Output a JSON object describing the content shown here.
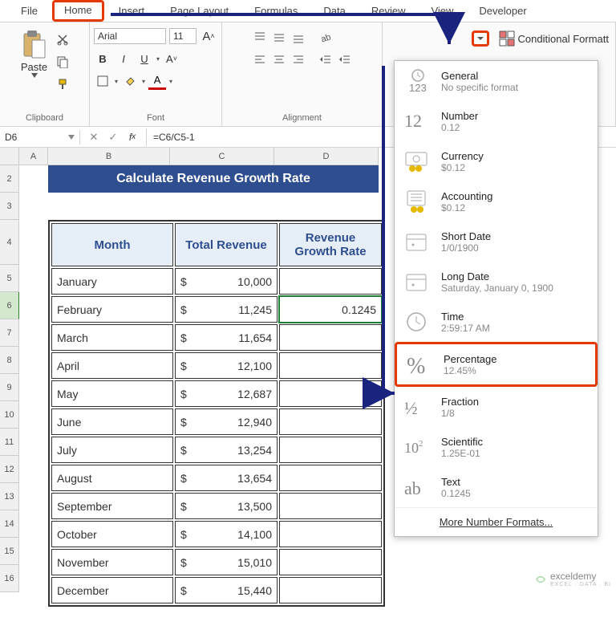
{
  "tabs": {
    "file": "File",
    "home": "Home",
    "insert": "Insert",
    "page_layout": "Page Layout",
    "formulas": "Formulas",
    "data": "Data",
    "review": "Review",
    "view": "View",
    "developer": "Developer"
  },
  "ribbon": {
    "clipboard": {
      "label": "Clipboard",
      "paste": "Paste"
    },
    "font": {
      "label": "Font",
      "name": "Arial",
      "size": "11",
      "bold": "B",
      "italic": "I",
      "underline": "U"
    },
    "alignment": {
      "label": "Alignment"
    },
    "number": {
      "cond_fmt": "Conditional Formatt"
    }
  },
  "formula_bar": {
    "namebox": "D6",
    "formula": "=C6/C5-1"
  },
  "columns": {
    "A": "A",
    "B": "B",
    "C": "C",
    "D": "D"
  },
  "rownums": [
    "2",
    "3",
    "4",
    "5",
    "6",
    "7",
    "8",
    "9",
    "10",
    "11",
    "12",
    "13",
    "14",
    "15",
    "16"
  ],
  "sheet": {
    "title": "Calculate Revenue Growth Rate",
    "headers": {
      "month": "Month",
      "revenue": "Total Revenue",
      "growth": "Revenue Growth Rate"
    },
    "rows": [
      {
        "month": "January",
        "cur": "$",
        "rev": "10,000",
        "growth": ""
      },
      {
        "month": "February",
        "cur": "$",
        "rev": "11,245",
        "growth": "0.1245"
      },
      {
        "month": "March",
        "cur": "$",
        "rev": "11,654",
        "growth": ""
      },
      {
        "month": "April",
        "cur": "$",
        "rev": "12,100",
        "growth": ""
      },
      {
        "month": "May",
        "cur": "$",
        "rev": "12,687",
        "growth": ""
      },
      {
        "month": "June",
        "cur": "$",
        "rev": "12,940",
        "growth": ""
      },
      {
        "month": "July",
        "cur": "$",
        "rev": "13,254",
        "growth": ""
      },
      {
        "month": "August",
        "cur": "$",
        "rev": "13,654",
        "growth": ""
      },
      {
        "month": "September",
        "cur": "$",
        "rev": "13,500",
        "growth": ""
      },
      {
        "month": "October",
        "cur": "$",
        "rev": "14,100",
        "growth": ""
      },
      {
        "month": "November",
        "cur": "$",
        "rev": "15,010",
        "growth": ""
      },
      {
        "month": "December",
        "cur": "$",
        "rev": "15,440",
        "growth": ""
      }
    ]
  },
  "format_dropdown": {
    "items": [
      {
        "title": "General",
        "sub": "No specific format",
        "icon": "123"
      },
      {
        "title": "Number",
        "sub": "0.12",
        "icon": "12"
      },
      {
        "title": "Currency",
        "sub": "$0.12",
        "icon": "cur"
      },
      {
        "title": "Accounting",
        "sub": "$0.12",
        "icon": "acc"
      },
      {
        "title": "Short Date",
        "sub": "1/0/1900",
        "icon": "cal"
      },
      {
        "title": "Long Date",
        "sub": "Saturday, January 0, 1900",
        "icon": "cal"
      },
      {
        "title": "Time",
        "sub": "2:59:17 AM",
        "icon": "clk"
      },
      {
        "title": "Percentage",
        "sub": "12.45%",
        "icon": "%",
        "hl": true
      },
      {
        "title": "Fraction",
        "sub": "1/8",
        "icon": "1/2"
      },
      {
        "title": "Scientific",
        "sub": "1.25E-01",
        "icon": "10²"
      },
      {
        "title": "Text",
        "sub": "0.1245",
        "icon": "ab"
      }
    ],
    "more": "More Number Formats..."
  },
  "watermark": {
    "brand": "exceldemy",
    "tag": "EXCEL · DATA · BI"
  },
  "colors": {
    "highlight_border": "#e63900",
    "arrow": "#1a237e",
    "header_bg": "#2f4e8f",
    "th_bg": "#e6eef8",
    "th_color": "#2f4e8f"
  }
}
